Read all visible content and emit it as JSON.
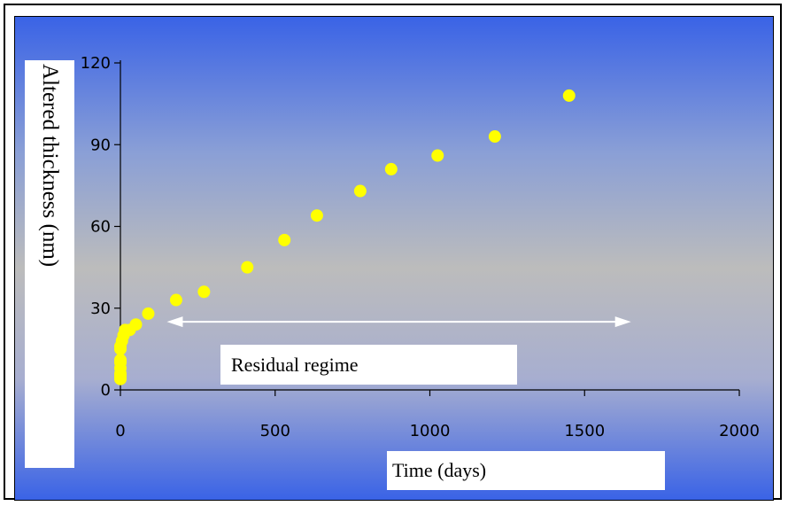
{
  "chart_data": {
    "type": "scatter",
    "title": "",
    "xlabel": "Time (days)",
    "ylabel": "Altered thickness (nm)",
    "xlim": [
      0,
      2000
    ],
    "ylim": [
      0,
      120
    ],
    "xticks": [
      0,
      500,
      1000,
      1500,
      2000
    ],
    "yticks": [
      0,
      30,
      60,
      90,
      120
    ],
    "grid": false,
    "series": [
      {
        "color": "#ffff00",
        "x": [
          0,
          0,
          0,
          0,
          0,
          0,
          0,
          0,
          5,
          10,
          15,
          30,
          50,
          90,
          180,
          270,
          410,
          530,
          635,
          775,
          875,
          1025,
          1210,
          1450
        ],
        "y": [
          4,
          5,
          6,
          8,
          10,
          11,
          15,
          16,
          18,
          20,
          22,
          22,
          24,
          28,
          33,
          36,
          45,
          55,
          64,
          73,
          81,
          86,
          93,
          108
        ]
      }
    ],
    "annotations": [
      {
        "text": "Residual regime",
        "arrow_x": [
          150,
          1650
        ],
        "arrow_y": 25
      }
    ],
    "colors": {
      "marker": "#ffff00",
      "arrow": "#ffffff",
      "background_top": "#3a63e6",
      "background_mid": "#bcbcbc"
    }
  }
}
